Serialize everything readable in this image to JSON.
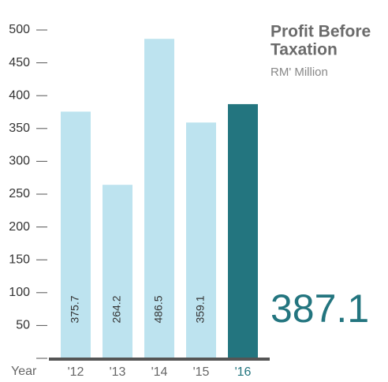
{
  "chart_data": {
    "type": "bar",
    "title": [
      "Profit Before",
      "Taxation"
    ],
    "subtitle": "RM' Million",
    "xlabel": "Year",
    "categories": [
      "'12",
      "'13",
      "'14",
      "'15",
      "'16"
    ],
    "values": [
      375.7,
      264.2,
      486.5,
      359.1,
      387.1
    ],
    "colors": [
      "#bde3ef",
      "#bde3ef",
      "#bde3ef",
      "#bde3ef",
      "#23757f"
    ],
    "ylim": [
      0,
      500
    ],
    "yticks": [
      50,
      100,
      150,
      200,
      250,
      300,
      350,
      400,
      450,
      500
    ]
  }
}
